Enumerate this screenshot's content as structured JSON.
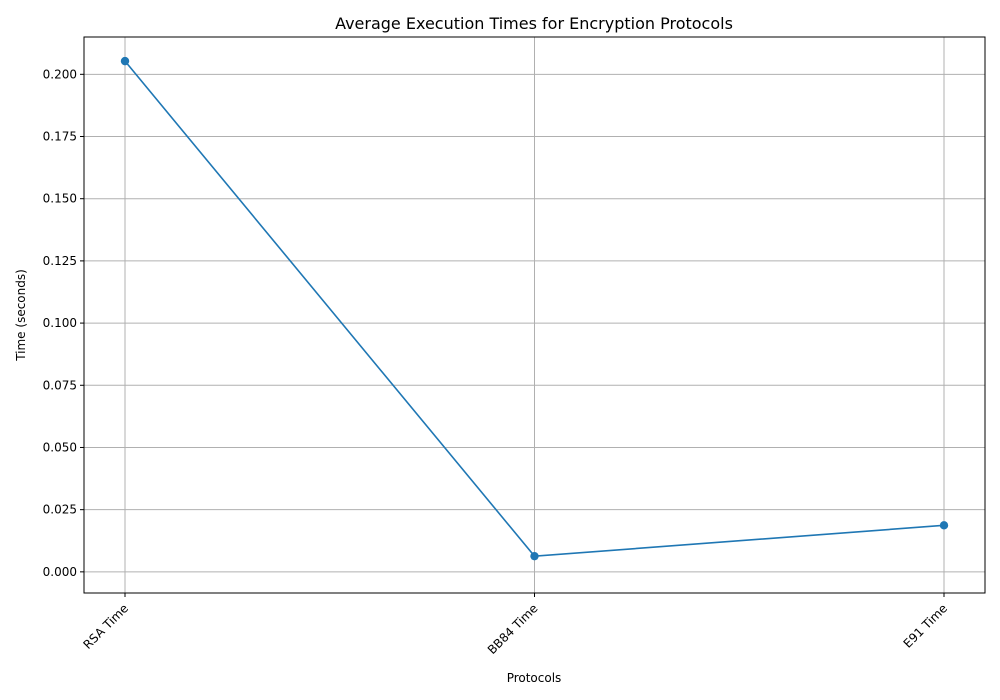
{
  "chart_data": {
    "type": "line",
    "title": "Average Execution Times for Encryption Protocols",
    "xlabel": "Protocols",
    "ylabel": "Time (seconds)",
    "categories": [
      "RSA Time",
      "BB84 Time",
      "E91 Time"
    ],
    "series": [
      {
        "values": [
          0.2053,
          0.0063,
          0.0187
        ],
        "color": "#1f77b4",
        "marker": "circle"
      }
    ],
    "ylim": [
      -0.0085,
      0.215
    ],
    "yticks": [
      0.0,
      0.025,
      0.05,
      0.075,
      0.1,
      0.125,
      0.15,
      0.175,
      0.2
    ],
    "ytick_labels": [
      "0.000",
      "0.025",
      "0.050",
      "0.075",
      "0.100",
      "0.125",
      "0.150",
      "0.175",
      "0.200"
    ],
    "grid": true,
    "x_tick_rotation_deg": 45
  }
}
